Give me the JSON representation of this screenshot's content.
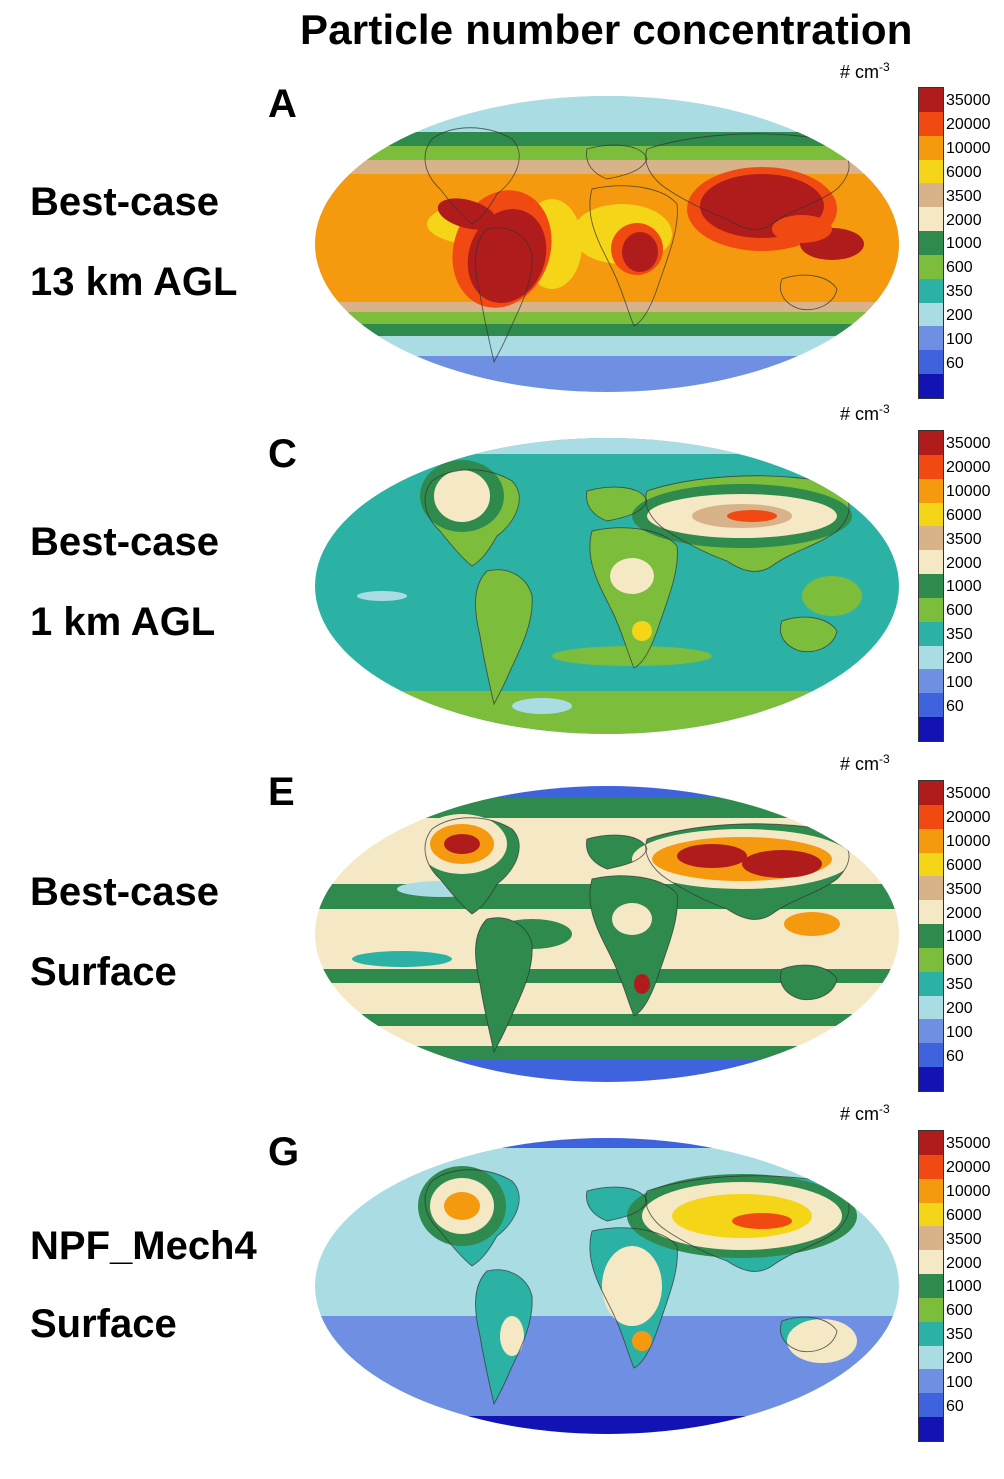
{
  "title": "Particle number concentration",
  "legend": {
    "unit": "# cm",
    "unit_exp": "-3",
    "labels": [
      "35000",
      "20000",
      "10000",
      "6000",
      "3500",
      "2000",
      "1000",
      "600",
      "350",
      "200",
      "100",
      "60"
    ],
    "colors": [
      "#b01c1c",
      "#f04a12",
      "#f59a0f",
      "#f5d518",
      "#d8b389",
      "#f5e8c4",
      "#2f8a4e",
      "#7cbe3c",
      "#2bb2a5",
      "#a9dde3",
      "#6f8fe3",
      "#3e63dc",
      "#1313b4"
    ]
  },
  "panels": [
    {
      "letter": "A",
      "line1": "Best-case",
      "line2": "13 km AGL",
      "pattern": "upper"
    },
    {
      "letter": "C",
      "line1": "Best-case",
      "line2": "1 km AGL",
      "pattern": "low"
    },
    {
      "letter": "E",
      "line1": "Best-case",
      "line2": "Surface",
      "pattern": "surface"
    },
    {
      "letter": "G",
      "line1": "NPF_Mech4",
      "line2": "Surface",
      "pattern": "npf"
    }
  ]
}
